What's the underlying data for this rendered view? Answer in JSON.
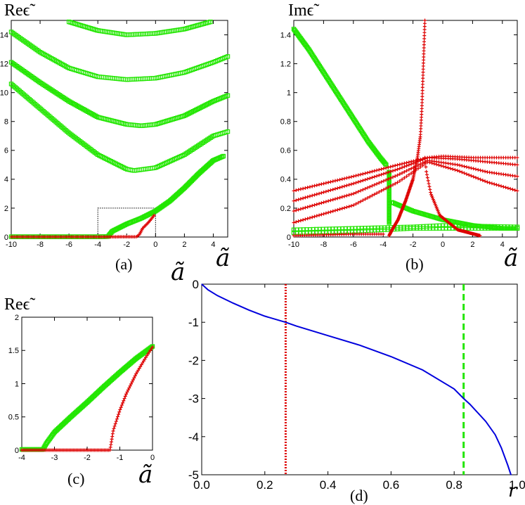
{
  "panel_labels": {
    "a": "(a)",
    "b": "(b)",
    "c": "(c)",
    "d": "(d)"
  },
  "axis_labels": {
    "a_y": "Reϵ̃",
    "a_x": "ã",
    "b_y": "Imϵ̃",
    "b_x": "ã",
    "c_y": "Reϵ̃",
    "c_x": "ã",
    "d_y": "ã",
    "d_x": "r"
  },
  "colors": {
    "red": "#dd0000",
    "green": "#22e600",
    "blue": "#0000dd",
    "box": "#000000"
  },
  "chart_data": [
    {
      "panel": "a",
      "type": "scatter",
      "xlim": [
        -10,
        5
      ],
      "ylim": [
        0,
        15
      ],
      "xticks": [
        -10,
        -8,
        -6,
        -4,
        -2,
        0,
        2,
        4
      ],
      "yticks": [
        0,
        2,
        4,
        6,
        8,
        10,
        12,
        14
      ],
      "zoom_box": {
        "x": [
          -4,
          0
        ],
        "y": [
          0,
          2
        ]
      },
      "series": [
        {
          "color": "green",
          "marker": "square",
          "points": [
            [
              -10,
              0.02
            ],
            [
              -8,
              0.02
            ],
            [
              -6,
              0.02
            ],
            [
              -4,
              0.02
            ],
            [
              -3.3,
              0.03
            ],
            [
              -3,
              0.4
            ],
            [
              -2,
              0.9
            ],
            [
              -1,
              1.3
            ],
            [
              0,
              1.8
            ],
            [
              1,
              2.5
            ],
            [
              2,
              3.4
            ],
            [
              3,
              4.4
            ],
            [
              4,
              5.3
            ],
            [
              4.7,
              5.6
            ]
          ]
        },
        {
          "color": "red",
          "marker": "plus",
          "points": [
            [
              -10,
              0.01
            ],
            [
              -4,
              0.01
            ],
            [
              -1.3,
              0.02
            ],
            [
              -1.1,
              0.2
            ],
            [
              -0.9,
              0.6
            ],
            [
              -0.5,
              1.0
            ],
            [
              -0.1,
              1.5
            ]
          ]
        },
        {
          "color": "green",
          "marker": "square",
          "points": [
            [
              -10,
              10.6
            ],
            [
              -8,
              8.9
            ],
            [
              -6,
              7.2
            ],
            [
              -4,
              5.7
            ],
            [
              -2,
              4.7
            ],
            [
              -1.5,
              4.6
            ],
            [
              0,
              4.8
            ],
            [
              2,
              5.7
            ],
            [
              4,
              7.0
            ],
            [
              5,
              7.3
            ]
          ]
        },
        {
          "color": "green",
          "marker": "square",
          "points": [
            [
              -10,
              12.1
            ],
            [
              -8,
              10.7
            ],
            [
              -6,
              9.4
            ],
            [
              -4,
              8.3
            ],
            [
              -2,
              7.8
            ],
            [
              -1,
              7.7
            ],
            [
              0,
              7.8
            ],
            [
              2,
              8.4
            ],
            [
              4,
              9.4
            ],
            [
              5,
              9.8
            ]
          ]
        },
        {
          "color": "green",
          "marker": "square",
          "points": [
            [
              -10,
              14.2
            ],
            [
              -8,
              12.8
            ],
            [
              -6,
              11.7
            ],
            [
              -4,
              11.1
            ],
            [
              -2,
              10.9
            ],
            [
              0,
              11.0
            ],
            [
              2,
              11.4
            ],
            [
              4,
              12.1
            ],
            [
              5,
              12.5
            ]
          ]
        },
        {
          "color": "green",
          "marker": "square",
          "points": [
            [
              -6,
              14.9
            ],
            [
              -4,
              14.3
            ],
            [
              -2,
              14.0
            ],
            [
              0,
              14.1
            ],
            [
              2,
              14.4
            ],
            [
              3.8,
              14.9
            ]
          ]
        }
      ]
    },
    {
      "panel": "b",
      "type": "scatter",
      "xlim": [
        -10,
        5
      ],
      "ylim": [
        0,
        1.5
      ],
      "xticks": [
        -10,
        -8,
        -6,
        -4,
        -2,
        0,
        2,
        4
      ],
      "yticks": [
        0,
        0.2,
        0.4,
        0.6,
        0.8,
        1,
        1.2,
        1.4
      ],
      "series": [
        {
          "color": "green",
          "marker": "square",
          "points": [
            [
              -10,
              1.44
            ],
            [
              -9,
              1.3
            ],
            [
              -8,
              1.14
            ],
            [
              -7,
              0.98
            ],
            [
              -6,
              0.82
            ],
            [
              -5,
              0.66
            ],
            [
              -4.2,
              0.55
            ],
            [
              -3.8,
              0.5
            ]
          ]
        },
        {
          "color": "green",
          "marker": "square",
          "points": [
            [
              -3.6,
              0.45
            ],
            [
              -3.6,
              0.3
            ],
            [
              -3.6,
              0.17
            ],
            [
              -3.6,
              0.1
            ]
          ]
        },
        {
          "color": "green",
          "marker": "square",
          "points": [
            [
              -3.4,
              0.24
            ],
            [
              -2,
              0.18
            ],
            [
              0,
              0.12
            ],
            [
              2,
              0.08
            ],
            [
              4,
              0.06
            ],
            [
              5,
              0.06
            ]
          ]
        },
        {
          "color": "green",
          "marker": "square",
          "points": [
            [
              -10,
              0.03
            ],
            [
              -6,
              0.04
            ],
            [
              -2,
              0.06
            ],
            [
              0,
              0.06
            ],
            [
              5,
              0.06
            ]
          ]
        },
        {
          "color": "green",
          "marker": "square",
          "points": [
            [
              -10,
              0.05
            ],
            [
              -6,
              0.06
            ],
            [
              -2,
              0.07
            ],
            [
              0,
              0.08
            ],
            [
              5,
              0.07
            ]
          ]
        },
        {
          "color": "red",
          "marker": "plus",
          "points": [
            [
              -1.2,
              1.5
            ],
            [
              -1.3,
              1.2
            ],
            [
              -1.4,
              0.9
            ],
            [
              -1.5,
              0.7
            ],
            [
              -1.7,
              0.55
            ],
            [
              -2,
              0.4
            ],
            [
              -2.5,
              0.25
            ],
            [
              -3,
              0.12
            ],
            [
              -3.4,
              0.05
            ],
            [
              -3.6,
              0.01
            ]
          ]
        },
        {
          "color": "red",
          "marker": "plus",
          "points": [
            [
              -1.2,
              0.55
            ],
            [
              -1.1,
              0.45
            ],
            [
              -0.8,
              0.3
            ],
            [
              -0.2,
              0.15
            ],
            [
              1,
              0.05
            ],
            [
              2.5,
              0.01
            ]
          ]
        },
        {
          "color": "red",
          "marker": "plus",
          "points": [
            [
              -10,
              0.32
            ],
            [
              -6,
              0.42
            ],
            [
              -3,
              0.5
            ],
            [
              -1,
              0.55
            ],
            [
              0,
              0.56
            ],
            [
              2,
              0.55
            ],
            [
              5,
              0.55
            ]
          ]
        },
        {
          "color": "red",
          "marker": "plus",
          "points": [
            [
              -10,
              0.25
            ],
            [
              -6,
              0.37
            ],
            [
              -3,
              0.47
            ],
            [
              -1,
              0.55
            ],
            [
              1,
              0.54
            ],
            [
              3,
              0.52
            ],
            [
              5,
              0.5
            ]
          ]
        },
        {
          "color": "red",
          "marker": "plus",
          "points": [
            [
              -10,
              0.18
            ],
            [
              -6,
              0.3
            ],
            [
              -3,
              0.43
            ],
            [
              -1,
              0.53
            ],
            [
              1,
              0.5
            ],
            [
              3,
              0.45
            ],
            [
              5,
              0.42
            ]
          ]
        },
        {
          "color": "red",
          "marker": "plus",
          "points": [
            [
              -10,
              0.1
            ],
            [
              -6,
              0.22
            ],
            [
              -3,
              0.38
            ],
            [
              -1,
              0.52
            ],
            [
              1,
              0.46
            ],
            [
              3,
              0.38
            ],
            [
              5,
              0.32
            ]
          ]
        },
        {
          "color": "red",
          "marker": "plus",
          "points": [
            [
              -10,
              0.01
            ],
            [
              -6,
              0.02
            ],
            [
              -4,
              0.02
            ]
          ]
        }
      ]
    },
    {
      "panel": "c",
      "type": "scatter",
      "xlim": [
        -4,
        0
      ],
      "ylim": [
        0,
        2
      ],
      "xticks": [
        -4,
        -3,
        -2,
        -1,
        0
      ],
      "yticks": [
        0,
        0.5,
        1,
        1.5,
        2
      ],
      "series": [
        {
          "color": "green",
          "marker": "square",
          "points": [
            [
              -4,
              0.01
            ],
            [
              -3.35,
              0.01
            ],
            [
              -3.25,
              0.1
            ],
            [
              -3,
              0.27
            ],
            [
              -2.5,
              0.5
            ],
            [
              -2,
              0.72
            ],
            [
              -1.5,
              0.95
            ],
            [
              -1,
              1.17
            ],
            [
              -0.5,
              1.38
            ],
            [
              0,
              1.56
            ]
          ]
        },
        {
          "color": "red",
          "marker": "plus",
          "points": [
            [
              -4,
              0
            ],
            [
              -1.3,
              0
            ],
            [
              -1.2,
              0.3
            ],
            [
              -1.0,
              0.6
            ],
            [
              -0.8,
              0.85
            ],
            [
              -0.5,
              1.15
            ],
            [
              -0.2,
              1.4
            ],
            [
              0,
              1.55
            ]
          ]
        }
      ]
    },
    {
      "panel": "d",
      "type": "line",
      "xlim": [
        0,
        1
      ],
      "ylim": [
        -5,
        0
      ],
      "xticks": [
        0.0,
        0.2,
        0.4,
        0.6,
        0.8,
        1.0
      ],
      "yticks": [
        0,
        -1,
        -2,
        -3,
        -4,
        -5
      ],
      "series": [
        {
          "color": "blue",
          "style": "solid",
          "points": [
            [
              0,
              0
            ],
            [
              0.02,
              -0.15
            ],
            [
              0.05,
              -0.3
            ],
            [
              0.1,
              -0.5
            ],
            [
              0.15,
              -0.68
            ],
            [
              0.2,
              -0.84
            ],
            [
              0.266,
              -1.0
            ],
            [
              0.3,
              -1.1
            ],
            [
              0.4,
              -1.35
            ],
            [
              0.5,
              -1.6
            ],
            [
              0.6,
              -1.9
            ],
            [
              0.7,
              -2.25
            ],
            [
              0.8,
              -2.75
            ],
            [
              0.83,
              -3.0
            ],
            [
              0.85,
              -3.15
            ],
            [
              0.9,
              -3.6
            ],
            [
              0.93,
              -3.95
            ],
            [
              0.95,
              -4.3
            ],
            [
              0.97,
              -4.75
            ],
            [
              0.98,
              -5.0
            ]
          ]
        }
      ],
      "vlines": [
        {
          "x": 0.266,
          "color": "red",
          "style": "dotted"
        },
        {
          "x": 0.83,
          "color": "green",
          "style": "dashed"
        }
      ]
    }
  ]
}
